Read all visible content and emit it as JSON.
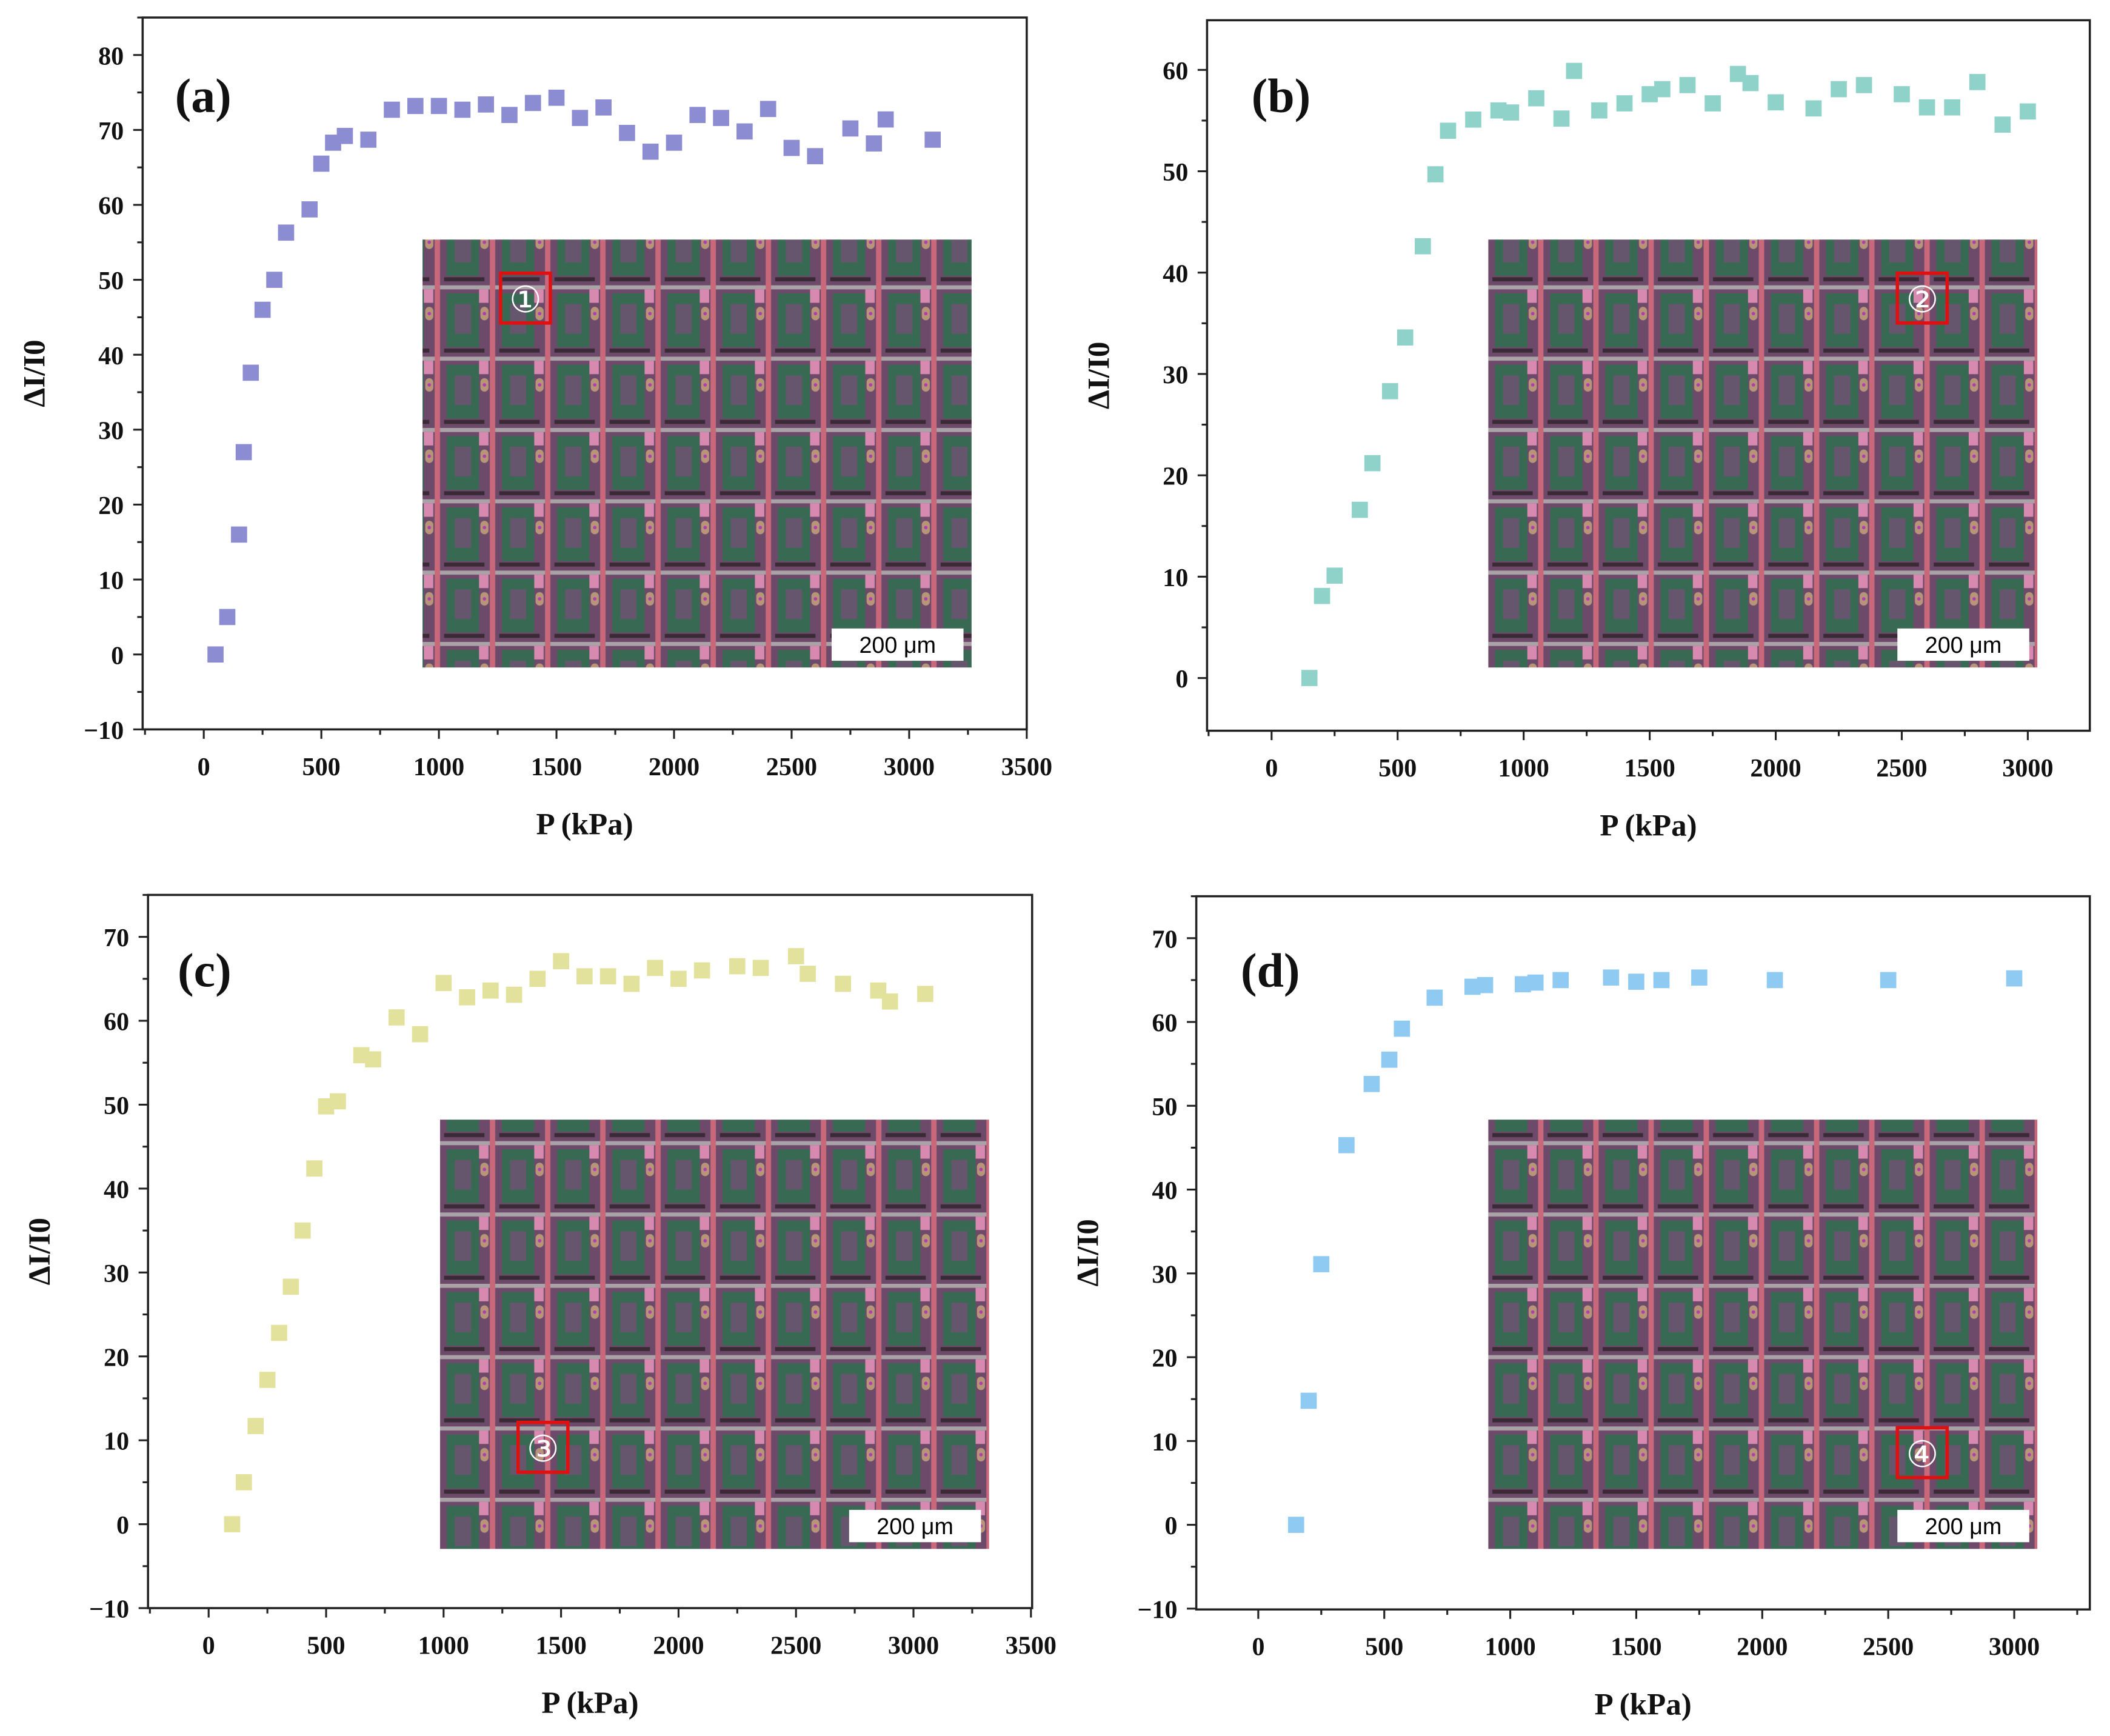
{
  "chart_data": [
    {
      "type": "scatter",
      "panel_label": "(a)",
      "xlabel": "P (kPa)",
      "ylabel": "ΔI/I0",
      "xlim": [
        -260,
        3500
      ],
      "ylim": [
        -10,
        85
      ],
      "xticks": [
        0,
        500,
        1000,
        1500,
        2000,
        2500,
        3000,
        3500
      ],
      "yticks": [
        -10,
        0,
        10,
        20,
        30,
        40,
        50,
        60,
        70,
        80
      ],
      "grid": false,
      "color": "#8c8cd2",
      "inset": {
        "scale_bar": "200 μm",
        "marker": "①"
      },
      "x": [
        50,
        100,
        150,
        170,
        200,
        250,
        300,
        350,
        450,
        500,
        550,
        600,
        700,
        800,
        900,
        1000,
        1100,
        1200,
        1300,
        1400,
        1500,
        1600,
        1700,
        1800,
        1900,
        2000,
        2100,
        2200,
        2300,
        2400,
        2500,
        2600,
        2750,
        2850,
        2900,
        3100
      ],
      "y": [
        0,
        5,
        16,
        27,
        37.6,
        46,
        50,
        56.3,
        59.4,
        65.5,
        68.3,
        69.2,
        68.7,
        72.7,
        73.2,
        73.2,
        72.7,
        73.4,
        72,
        73.6,
        74.3,
        71.6,
        73,
        69.6,
        67.1,
        68.3,
        72,
        71.6,
        69.8,
        72.8,
        67.6,
        66.5,
        70.2,
        68.2,
        71.4,
        68.7
      ]
    },
    {
      "type": "scatter",
      "panel_label": "(b)",
      "xlabel": "P (kPa)",
      "ylabel": "ΔI/I0",
      "xlim": [
        -256,
        3246
      ],
      "ylim": [
        -5.2,
        64.9
      ],
      "xticks": [
        0,
        500,
        1000,
        1500,
        2000,
        2500,
        3000
      ],
      "yticks": [
        0,
        10,
        20,
        30,
        40,
        50,
        60
      ],
      "grid": false,
      "color": "#8fd2ca",
      "inset": {
        "scale_bar": "200 μm",
        "marker": "②"
      },
      "x": [
        150,
        200,
        250,
        350,
        400,
        470,
        530,
        600,
        650,
        700,
        800,
        900,
        950,
        1050,
        1150,
        1200,
        1300,
        1400,
        1500,
        1550,
        1650,
        1750,
        1850,
        1900,
        2000,
        2150,
        2250,
        2350,
        2500,
        2600,
        2700,
        2800,
        2900,
        3000
      ],
      "y": [
        0,
        8.1,
        10.1,
        16.6,
        21.2,
        28.3,
        33.6,
        42.6,
        49.7,
        54,
        55.1,
        56,
        55.8,
        57.2,
        55.2,
        59.9,
        56,
        56.7,
        57.6,
        58.1,
        58.5,
        56.7,
        59.6,
        58.7,
        56.8,
        56.2,
        58.1,
        58.5,
        57.6,
        56.3,
        56.3,
        58.8,
        54.6,
        55.9
      ]
    },
    {
      "type": "scatter",
      "panel_label": "(c)",
      "xlabel": "P (kPa)",
      "ylabel": "ΔI/I0",
      "xlim": [
        -258,
        3505
      ],
      "ylim": [
        -10,
        75
      ],
      "xticks": [
        0,
        500,
        1000,
        1500,
        2000,
        2500,
        3000,
        3500
      ],
      "yticks": [
        -10,
        0,
        10,
        20,
        30,
        40,
        50,
        60,
        70
      ],
      "grid": false,
      "color": "#e2e29c",
      "inset": {
        "scale_bar": "200 μm",
        "marker": "③"
      },
      "x": [
        100,
        150,
        200,
        250,
        300,
        350,
        400,
        450,
        500,
        550,
        650,
        700,
        800,
        900,
        1000,
        1100,
        1200,
        1300,
        1400,
        1500,
        1600,
        1700,
        1800,
        1900,
        2000,
        2100,
        2250,
        2350,
        2500,
        2550,
        2700,
        2850,
        2900,
        3050
      ],
      "y": [
        0,
        5,
        11.7,
        17.2,
        22.8,
        28.3,
        35,
        42.4,
        49.8,
        50.4,
        55.9,
        55.4,
        60.4,
        58.4,
        64.5,
        62.8,
        63.6,
        63.1,
        65,
        67.1,
        65.3,
        65.3,
        64.4,
        66.3,
        65,
        66,
        66.5,
        66.3,
        67.7,
        65.6,
        64.4,
        63.6,
        62.3,
        63.2
      ]
    },
    {
      "type": "scatter",
      "panel_label": "(d)",
      "xlabel": "P (kPa)",
      "ylabel": "ΔI/I0",
      "xlim": [
        -246,
        3300
      ],
      "ylim": [
        -10.1,
        75
      ],
      "xticks": [
        0,
        500,
        1000,
        1500,
        2000,
        2500,
        3000
      ],
      "yticks": [
        -10,
        0,
        10,
        20,
        30,
        40,
        50,
        60,
        70
      ],
      "grid": false,
      "color": "#8ecaf2",
      "inset": {
        "scale_bar": "200 μm",
        "marker": "④"
      },
      "x": [
        150,
        200,
        250,
        350,
        450,
        520,
        570,
        700,
        850,
        900,
        1050,
        1100,
        1200,
        1400,
        1500,
        1600,
        1750,
        2050,
        2500,
        3000
      ],
      "y": [
        0,
        14.8,
        31.1,
        45.3,
        52.6,
        55.5,
        59.2,
        62.9,
        64.2,
        64.4,
        64.5,
        64.7,
        65,
        65.3,
        64.8,
        65,
        65.3,
        65,
        65,
        65.2
      ]
    }
  ]
}
